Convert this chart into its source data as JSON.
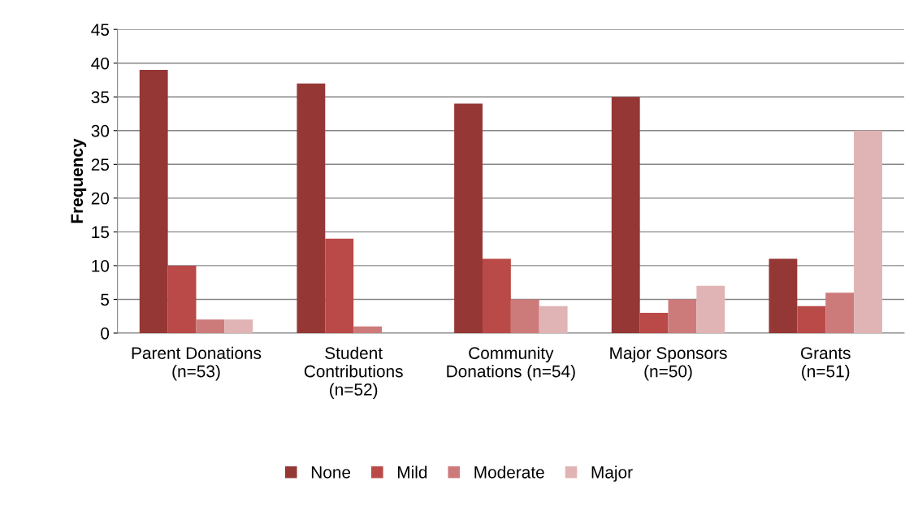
{
  "chart_data": {
    "type": "bar",
    "ylabel": "Frequency",
    "categories": [
      "Parent Donations\n(n=53)",
      "Student\nContributions\n(n=52)",
      "Community\nDonations (n=54)",
      "Major Sponsors\n(n=50)",
      "Grants\n(n=51)"
    ],
    "series": [
      {
        "name": "None",
        "color": "#953735",
        "values": [
          39,
          37,
          34,
          35,
          11
        ]
      },
      {
        "name": "Mild",
        "color": "#b94a48",
        "values": [
          10,
          14,
          11,
          3,
          4
        ]
      },
      {
        "name": "Moderate",
        "color": "#cd7b7a",
        "values": [
          2,
          1,
          5,
          5,
          6
        ]
      },
      {
        "name": "Major",
        "color": "#e0b4b4",
        "values": [
          2,
          0,
          4,
          7,
          30
        ]
      }
    ],
    "ylim": [
      0,
      45
    ],
    "yticks": [
      0,
      5,
      10,
      15,
      20,
      25,
      30,
      35,
      40,
      45
    ],
    "grid": "y",
    "legend": "bottom"
  }
}
